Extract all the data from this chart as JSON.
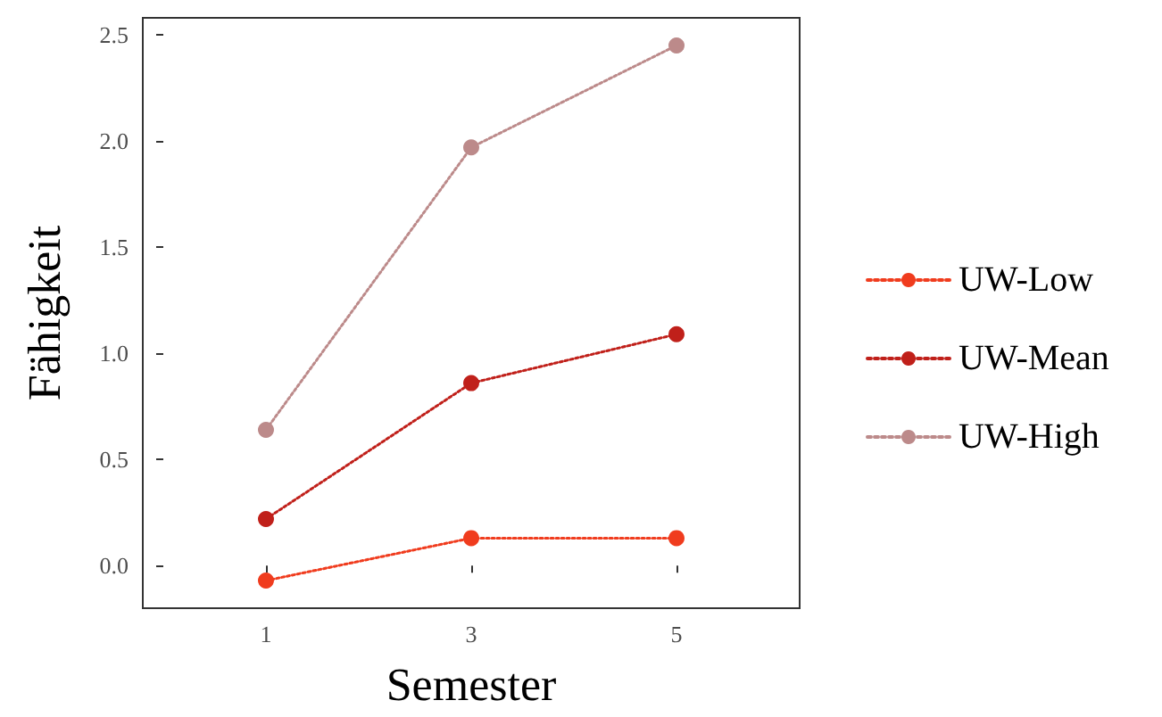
{
  "chart_data": {
    "type": "line",
    "xlabel": "Semester",
    "ylabel": "Fähigkeit",
    "x": [
      1,
      3,
      5
    ],
    "series": [
      {
        "name": "UW-Low",
        "color": "#f03c1e",
        "values": [
          -0.07,
          0.13,
          0.13
        ]
      },
      {
        "name": "UW-Mean",
        "color": "#c0201a",
        "values": [
          0.22,
          0.86,
          1.09
        ]
      },
      {
        "name": "UW-High",
        "color": "#bc8a8a",
        "values": [
          0.64,
          1.97,
          2.45
        ]
      }
    ],
    "xlim": [
      -0.2,
      6.2
    ],
    "xticks": [
      1,
      3,
      5
    ],
    "ylim": [
      -0.2,
      2.58
    ],
    "yticks": [
      {
        "value": 0,
        "label": "0.0"
      },
      0.5,
      {
        "value": 1,
        "label": "1.0"
      },
      1.5,
      {
        "value": 2,
        "label": "2.0"
      },
      2.5
    ],
    "grid": false,
    "legend": "right",
    "marker": "circle",
    "line_style": "dotted"
  }
}
